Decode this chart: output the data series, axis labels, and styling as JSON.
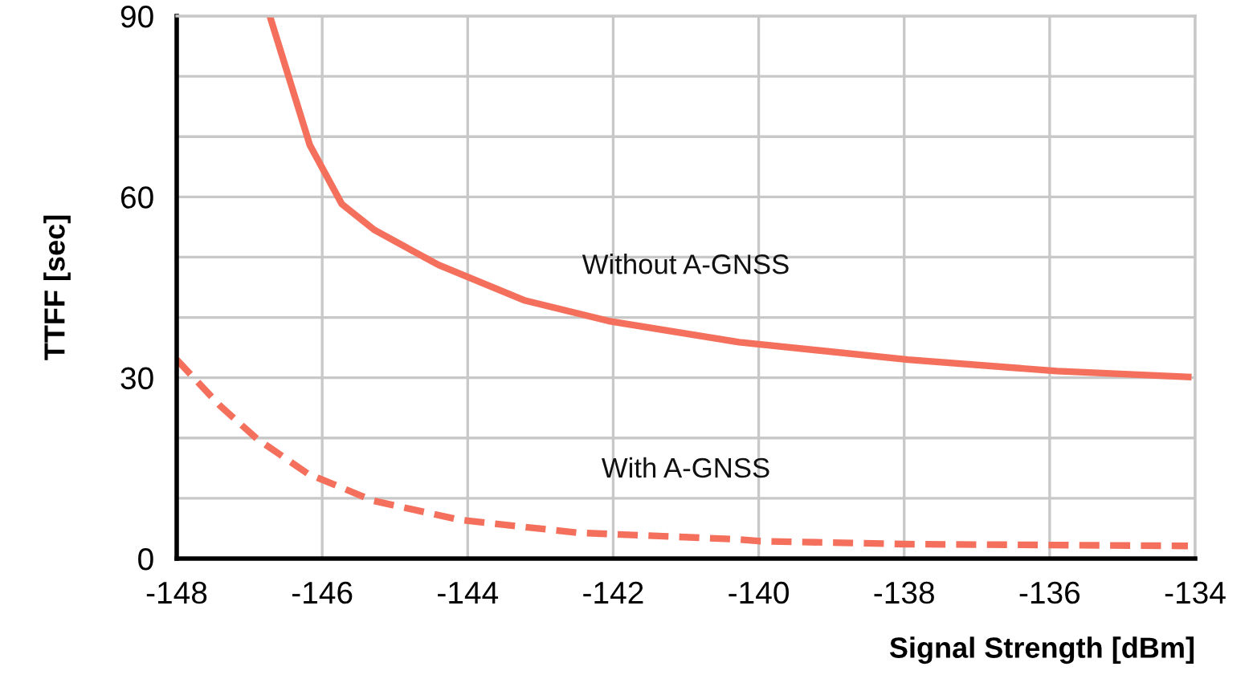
{
  "chart_data": {
    "type": "line",
    "xlabel": "Signal Strength [dBm]",
    "ylabel": "TTFF [sec]",
    "xlim": [
      -148,
      -134
    ],
    "xticks": [
      -148,
      -146,
      -144,
      -142,
      -140,
      -138,
      -136,
      -134
    ],
    "ylim": [
      0,
      90
    ],
    "yticks": [
      0,
      {
        "value": 10,
        "label": null
      },
      {
        "value": 20,
        "label": null
      },
      30,
      {
        "value": 40,
        "label": null
      },
      {
        "value": 50,
        "label": null
      },
      60,
      {
        "value": 70,
        "label": null
      },
      {
        "value": 80,
        "label": null
      },
      90
    ],
    "grid": true,
    "legend": false,
    "marker": "none",
    "series": [
      {
        "name": "Without A-GNSS",
        "color": "#f4705c",
        "line_style": "solid",
        "x": [
          -146.72,
          -146.17,
          -145.73,
          -145.28,
          -144.4,
          -143.21,
          -142.06,
          -140.27,
          -137.95,
          -135.9,
          -134.05
        ],
        "values": [
          90,
          68.6,
          58.8,
          54.5,
          48.7,
          42.8,
          39.4,
          35.9,
          33.0,
          31.1,
          30.1
        ]
      },
      {
        "name": "With A-GNSS",
        "color": "#f4705c",
        "line_style": "dashed",
        "x": [
          -148,
          -147.4,
          -146.9,
          -146.2,
          -145.3,
          -144.1,
          -142.5,
          -140.3,
          -140.0,
          -138,
          -134.1
        ],
        "values": [
          33.0,
          25.3,
          19.9,
          14.1,
          9.6,
          6.4,
          4.3,
          3.2,
          2.9,
          2.4,
          2.1
        ]
      }
    ]
  }
}
